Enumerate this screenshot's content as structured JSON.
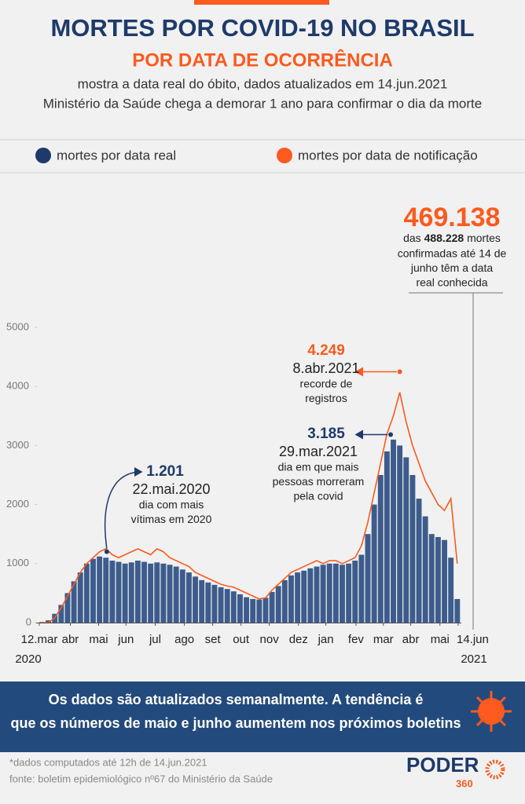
{
  "chart_data": {
    "type": "bar",
    "title": "MORTES POR COVID-19 NO BRASIL",
    "subtitle": "POR DATA DE OCORRÊNCIA",
    "description": [
      "mostra a data real do óbito, dados atualizados em 14.jun.2021",
      "Ministério da Saúde chega a demorar 1 ano para confirmar o dia da morte"
    ],
    "x": [
      0,
      7,
      14,
      21,
      28,
      35,
      42,
      49,
      56,
      63,
      70,
      77,
      84,
      91,
      98,
      105,
      112,
      119,
      126,
      133,
      140,
      147,
      154,
      161,
      168,
      175,
      182,
      189,
      196,
      203,
      210,
      217,
      224,
      231,
      238,
      245,
      252,
      259,
      266,
      273,
      280,
      287,
      294,
      301,
      308,
      315,
      322,
      329,
      336,
      343,
      350,
      357,
      364,
      371,
      378,
      385,
      392,
      399,
      406,
      413,
      420,
      427,
      434,
      441,
      448,
      455
    ],
    "series": [
      {
        "name": "mortes por data real",
        "color": "#3d5c8c",
        "values": [
          10,
          40,
          150,
          300,
          500,
          700,
          850,
          1000,
          1080,
          1120,
          1100,
          1050,
          1030,
          1000,
          1020,
          1050,
          1030,
          1000,
          1020,
          1000,
          980,
          950,
          900,
          850,
          780,
          720,
          680,
          640,
          600,
          570,
          530,
          480,
          430,
          400,
          390,
          420,
          520,
          620,
          720,
          800,
          850,
          880,
          920,
          950,
          980,
          1000,
          1000,
          980,
          1000,
          1050,
          1150,
          1500,
          2000,
          2500,
          2900,
          3100,
          3000,
          2800,
          2500,
          2100,
          1800,
          1500,
          1450,
          1400,
          1100,
          400
        ]
      },
      {
        "name": "mortes por data de notificação",
        "color": "#ff5a1f",
        "values": [
          0,
          0,
          80,
          250,
          450,
          650,
          850,
          1000,
          1100,
          1200,
          1250,
          1150,
          1100,
          1150,
          1200,
          1250,
          1200,
          1150,
          1250,
          1200,
          1100,
          1050,
          1000,
          950,
          850,
          800,
          750,
          700,
          650,
          620,
          600,
          550,
          500,
          450,
          400,
          420,
          550,
          650,
          750,
          850,
          900,
          950,
          1000,
          1050,
          1000,
          1050,
          1050,
          1000,
          1050,
          1100,
          1300,
          1700,
          2200,
          2700,
          3200,
          3500,
          3900,
          3400,
          3000,
          2700,
          2400,
          2200,
          2000,
          1900,
          2100,
          1000
        ]
      }
    ],
    "xlim": [
      0,
      459
    ],
    "xticks": [
      {
        "value": 0,
        "label": "12.mar"
      },
      {
        "value": 34,
        "label": "abr"
      },
      {
        "value": 65,
        "label": "mai"
      },
      {
        "value": 95,
        "label": "jun"
      },
      {
        "value": 127,
        "label": "jul"
      },
      {
        "value": 159,
        "label": "ago"
      },
      {
        "value": 190,
        "label": "set"
      },
      {
        "value": 221,
        "label": "out"
      },
      {
        "value": 252,
        "label": "nov"
      },
      {
        "value": 284,
        "label": "dez"
      },
      {
        "value": 314,
        "label": "jan"
      },
      {
        "value": 347,
        "label": "fev"
      },
      {
        "value": 377,
        "label": "mar"
      },
      {
        "value": 407,
        "label": "abr"
      },
      {
        "value": 439,
        "label": "mai"
      },
      {
        "value": 459,
        "label": "14.jun"
      }
    ],
    "year_labels": [
      "2020",
      "2021"
    ],
    "ylim": [
      0,
      5000
    ],
    "yticks": [
      0,
      1000,
      2000,
      3000,
      4000,
      5000
    ],
    "annotations": [
      {
        "x": 71,
        "value": 1201,
        "value_label": "1.201",
        "date": "22.mai.2020",
        "lines": [
          "dia com mais",
          "vítimas em 2020"
        ],
        "series": 0
      },
      {
        "x": 382,
        "value": 3185,
        "value_label": "3.185",
        "date": "29.mar.2021",
        "lines": [
          "dia em que mais",
          "pessoas morreram",
          "pela covid"
        ],
        "series": 0
      },
      {
        "x": 392,
        "value": 4249,
        "value_label": "4.249",
        "date": "8.abr.2021",
        "lines": [
          "recorde de",
          "registros"
        ],
        "series": 1
      }
    ],
    "total": {
      "value": 469138,
      "value_label": "469.138",
      "prefix": "das ",
      "confirmed": "488.228",
      "suffix": " mortes",
      "lines": [
        "confirmadas até 14 de",
        "junho têm a data",
        "real conhecida"
      ]
    },
    "footer": [
      "Os dados são atualizados semanalmente. A tendência é",
      "que os números de maio e junho aumentem nos próximos boletins"
    ],
    "notes": [
      "*dados computados até 12h de 14.jun.2021",
      "fonte: boletim epidemiológico nº67 do Ministério da Saúde"
    ],
    "logo": [
      "PODER",
      "360"
    ]
  }
}
